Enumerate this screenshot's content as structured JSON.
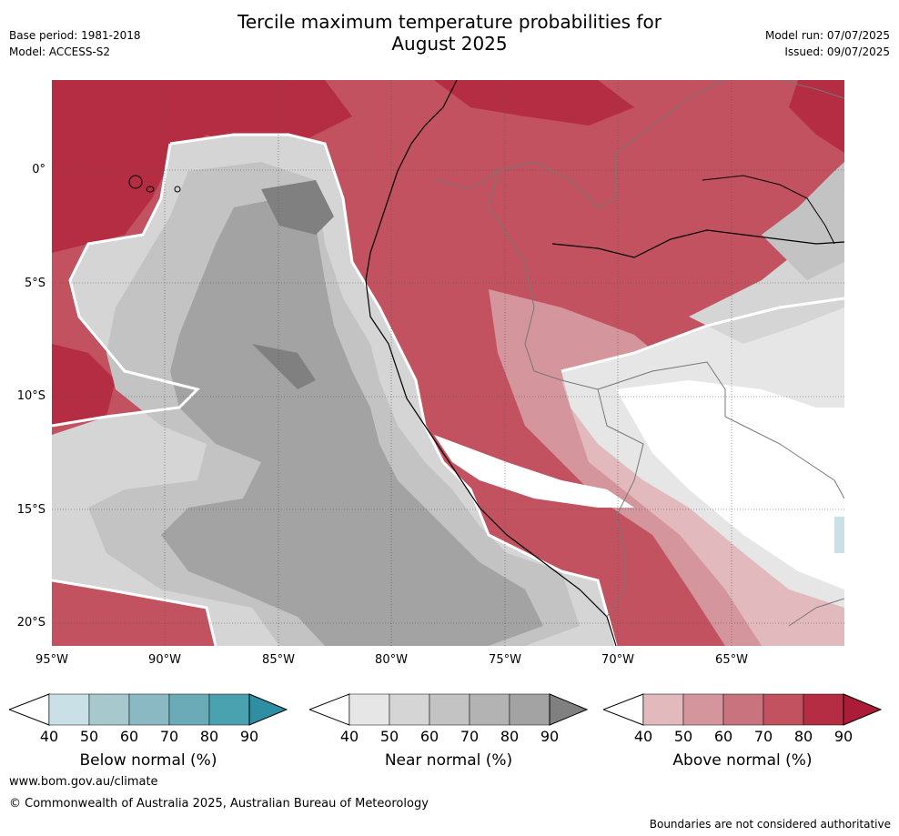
{
  "header": {
    "title_line1": "Tercile maximum temperature probabilities for",
    "title_line2": "August 2025",
    "base_period": "Base period: 1981-2018",
    "model": "Model: ACCESS-S2",
    "model_run": "Model run: 07/07/2025",
    "issued": "Issued: 09/07/2025"
  },
  "map": {
    "lat_labels": [
      "0°",
      "5°S",
      "10°S",
      "15°S",
      "20°S"
    ],
    "lon_labels": [
      "95°W",
      "90°W",
      "85°W",
      "80°W",
      "75°W",
      "70°W",
      "65°W"
    ]
  },
  "colorbars": [
    {
      "name": "Below normal (%)",
      "ticks": [
        "40",
        "50",
        "60",
        "70",
        "80",
        "90"
      ],
      "colors": [
        "#c9e1e6",
        "#a7c9ce",
        "#8bb9c3",
        "#6aabb7",
        "#4aa1b0",
        "#2e8ea2"
      ]
    },
    {
      "name": "Near normal (%)",
      "ticks": [
        "40",
        "50",
        "60",
        "70",
        "80",
        "90"
      ],
      "colors": [
        "#e6e6e6",
        "#d5d5d5",
        "#c3c3c3",
        "#b3b3b3",
        "#a3a3a3",
        "#808080"
      ]
    },
    {
      "name": "Above normal (%)",
      "ticks": [
        "40",
        "50",
        "60",
        "70",
        "80",
        "90"
      ],
      "colors": [
        "#e2b9bd",
        "#d5959c",
        "#c9737e",
        "#c2525f",
        "#b52d42",
        "#ab1c38"
      ]
    }
  ],
  "footer": {
    "website": "www.bom.gov.au/climate",
    "copyright": "© Commonwealth of Australia 2025, Australian Bureau of Meteorology",
    "disclaimer": "Boundaries are not considered authoritative"
  }
}
